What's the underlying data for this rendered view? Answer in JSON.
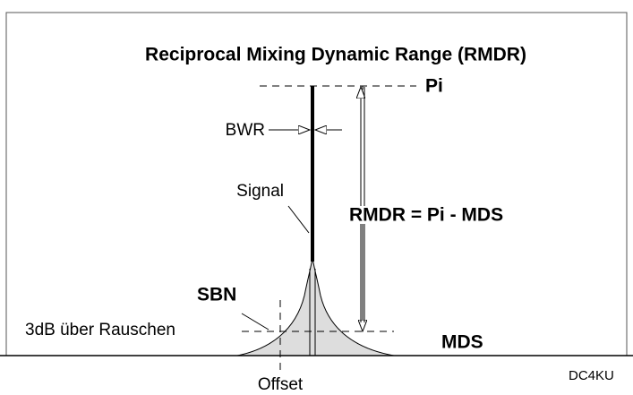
{
  "title": "Reciprocal Mixing Dynamic Range (RMDR)",
  "labels": {
    "pi": "Pi",
    "bwr": "BWR",
    "signal": "Signal",
    "formula": "RMDR = Pi - MDS",
    "sbn": "SBN",
    "threshold": "3dB über Rauschen",
    "mds": "MDS",
    "offset": "Offset",
    "author": "DC4KU"
  }
}
